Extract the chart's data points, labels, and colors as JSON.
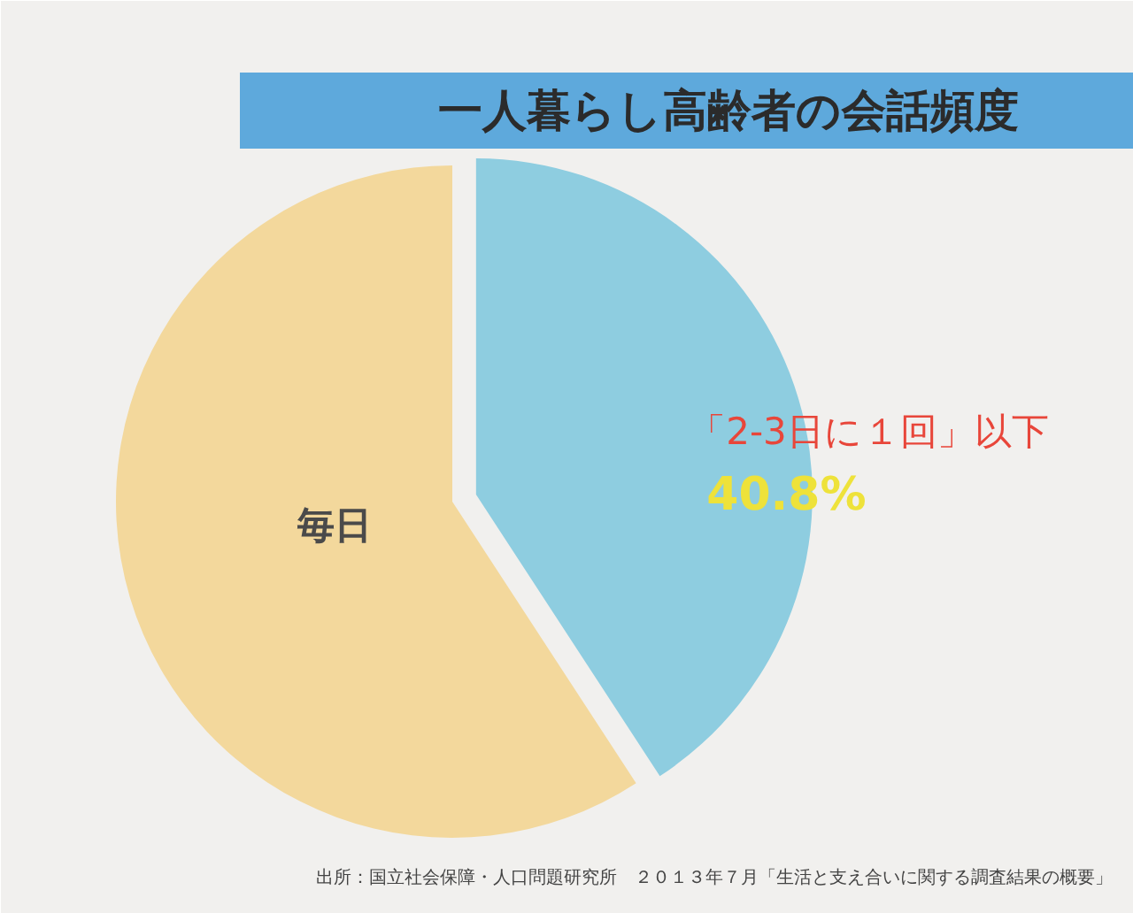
{
  "chart_data": {
    "type": "pie",
    "title": "一人暮らし高齢者の会話頻度",
    "categories": [
      "「2-3日に１回」以下",
      "毎日"
    ],
    "values": [
      40.8,
      59.2
    ],
    "colors": [
      "#8ecde0",
      "#f3d89c"
    ],
    "value_labels": [
      "40.8%",
      null
    ],
    "annotations": [
      "出所：国立社会保障・人口問題研究所　２０１３年７月「生活と支え合いに関する調査結果の概要」"
    ]
  }
}
